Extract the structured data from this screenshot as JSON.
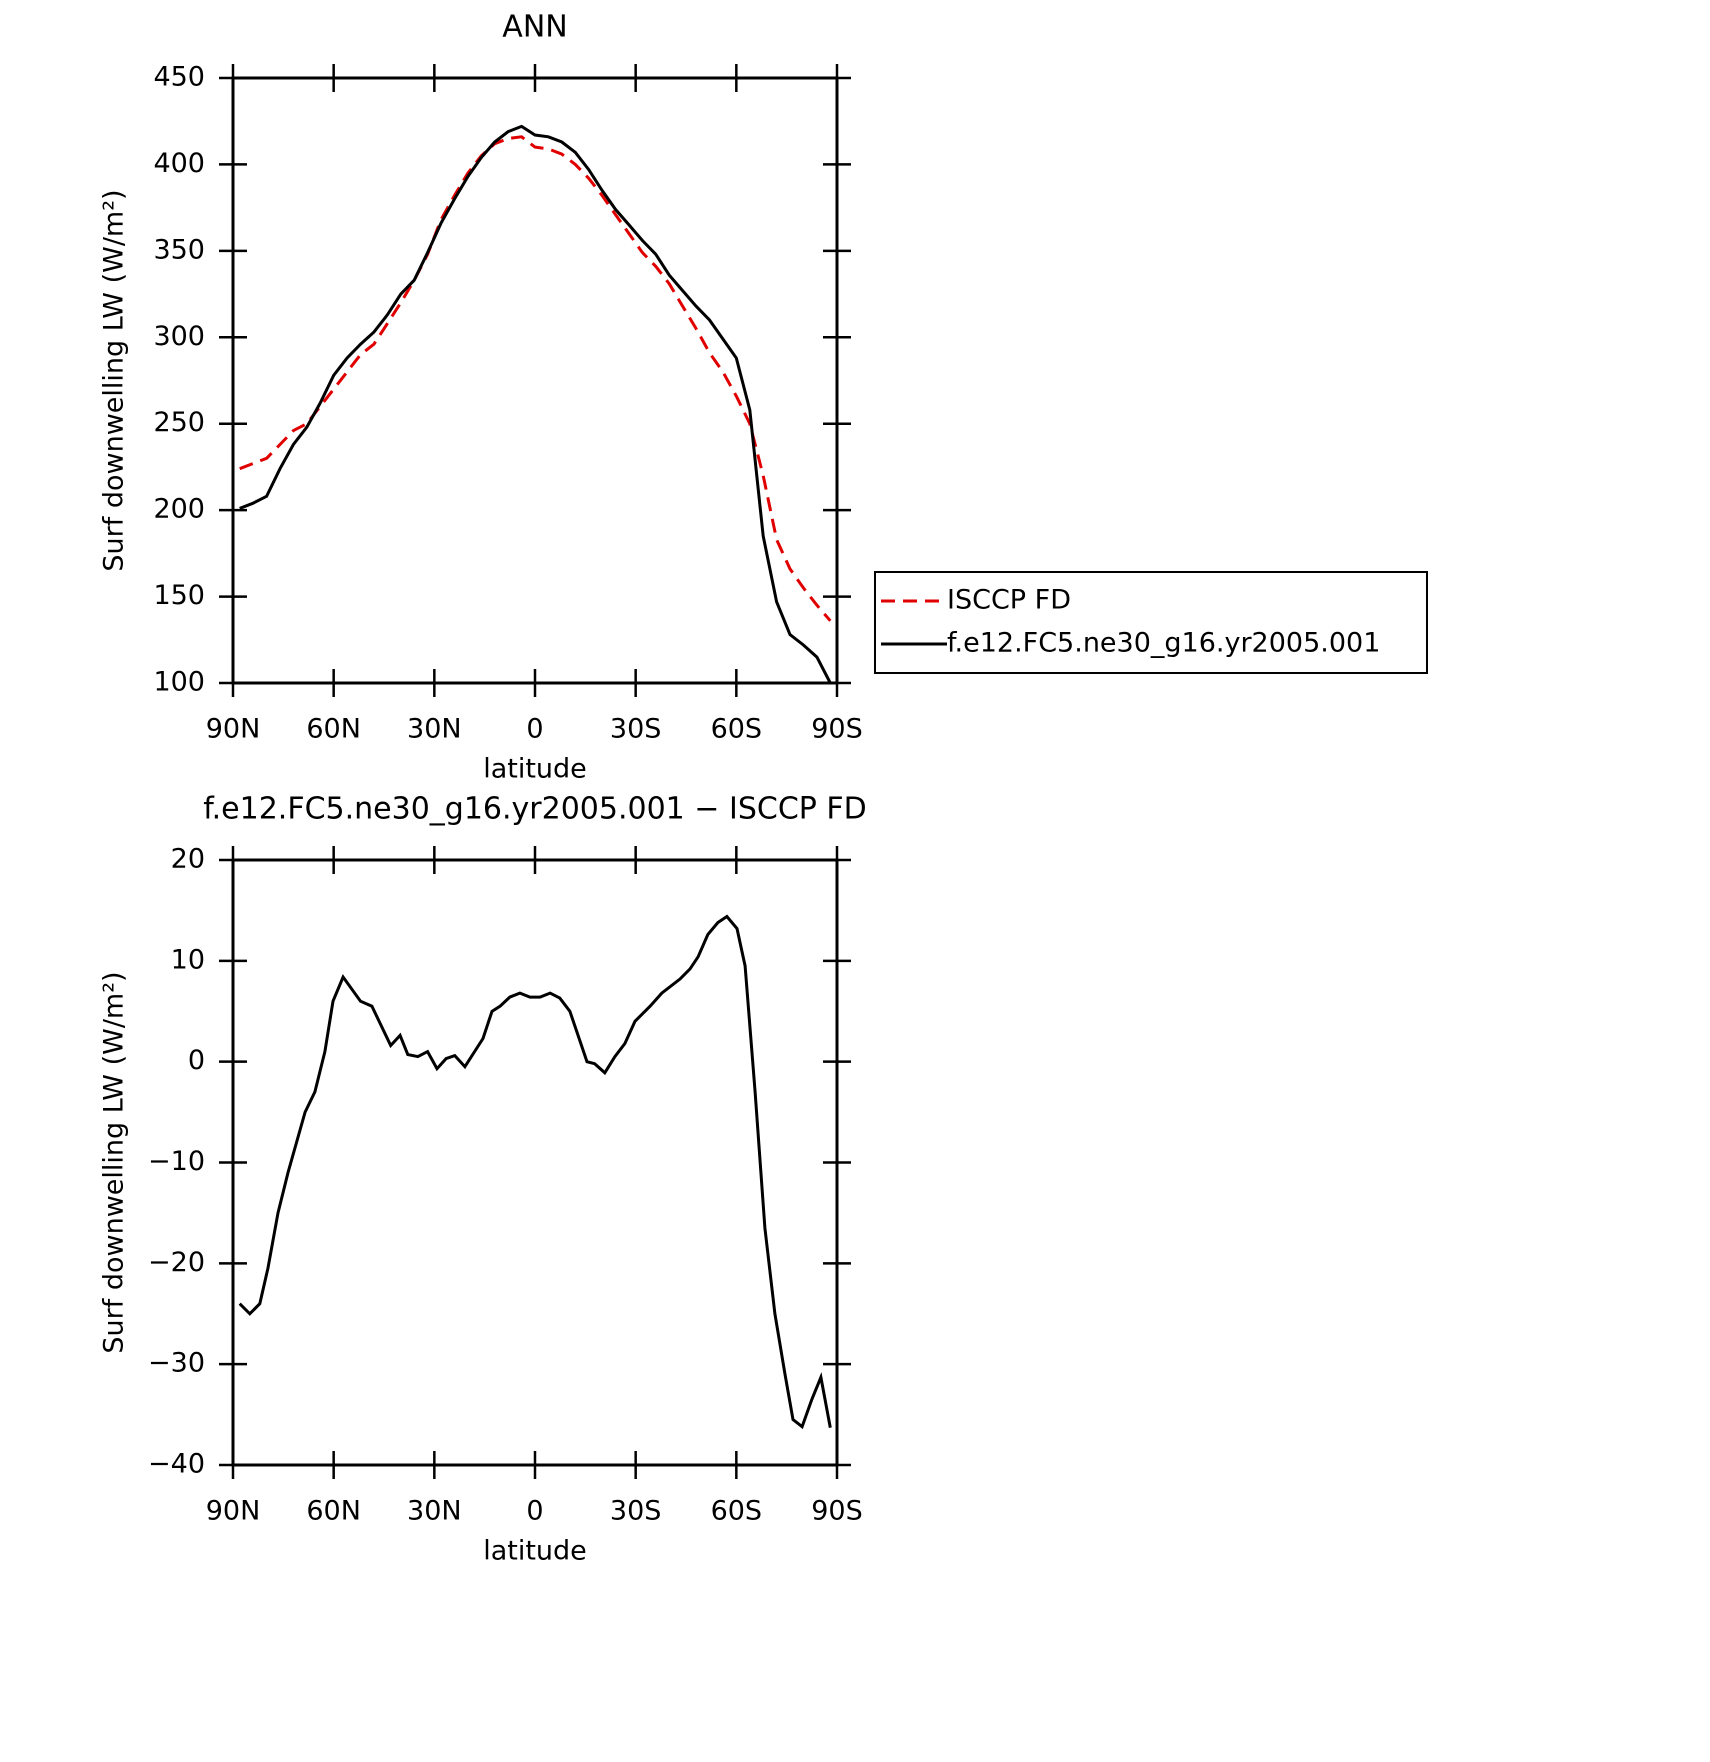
{
  "chart_data": [
    {
      "type": "line",
      "title": "ANN",
      "xlabel": "latitude",
      "ylabel": "Surf downwelling LW (W/m²)",
      "x": [
        88,
        84,
        80,
        76,
        72,
        68,
        64,
        60,
        56,
        52,
        48,
        44,
        40,
        36,
        32,
        28,
        24,
        20,
        16,
        12,
        8,
        4,
        0,
        -4,
        -8,
        -12,
        -16,
        -20,
        -24,
        -28,
        -32,
        -36,
        -40,
        -44,
        -48,
        -52,
        -56,
        -60,
        -64,
        -68,
        -72,
        -76,
        -80,
        -84,
        -88
      ],
      "series": [
        {
          "name": "ISCCP FD",
          "color": "#e00000",
          "linestyle": "dashed",
          "values": [
            224,
            227,
            230,
            238,
            246,
            250,
            260,
            270,
            280,
            290,
            296,
            308,
            320,
            333,
            348,
            368,
            382,
            395,
            405,
            412,
            415,
            416,
            410,
            409,
            406,
            400,
            392,
            382,
            371,
            360,
            349,
            341,
            331,
            318,
            305,
            291,
            280,
            266,
            250,
            220,
            183,
            166,
            155,
            145,
            136
          ]
        },
        {
          "name": "f.e12.FC5.ne30_g16.yr2005.001",
          "color": "#000000",
          "linestyle": "solid",
          "values": [
            201,
            204,
            208,
            224,
            238,
            248,
            262,
            278,
            288,
            296,
            303,
            313,
            325,
            333,
            349,
            366,
            380,
            393,
            404,
            413,
            419,
            422,
            417,
            416,
            413,
            407,
            397,
            385,
            374,
            365,
            356,
            348,
            336,
            327,
            318,
            310,
            299,
            288,
            258,
            185,
            147,
            128,
            122,
            115,
            100
          ]
        }
      ],
      "xlim": [
        90,
        -90
      ],
      "xticks": [
        {
          "value": 90,
          "label": "90N"
        },
        {
          "value": 60,
          "label": "60N"
        },
        {
          "value": 30,
          "label": "30N"
        },
        0,
        {
          "value": -30,
          "label": "30S"
        },
        {
          "value": -60,
          "label": "60S"
        },
        {
          "value": -90,
          "label": "90S"
        }
      ],
      "ylim": [
        100,
        450
      ],
      "yticks": [
        100,
        150,
        200,
        250,
        300,
        350,
        400,
        450
      ],
      "legend": "right"
    },
    {
      "type": "line",
      "title": "f.e12.FC5.ne30_g16.yr2005.001 − ISCCP FD",
      "xlabel": "latitude",
      "ylabel": "Surf downwelling LW (W/m²)",
      "x": [
        88,
        85,
        82,
        79.6,
        76.6,
        73.6,
        68.5,
        65.6,
        62.6,
        60.2,
        57.2,
        52,
        48.6,
        43,
        40.2,
        37.9,
        34.9,
        32,
        29.2,
        26.5,
        23.9,
        20.9,
        15.5,
        12.8,
        10.4,
        7.5,
        4.5,
        1.5,
        -1.5,
        -4.5,
        -7.4,
        -10.4,
        -15.5,
        -17.8,
        -20.8,
        -23.8,
        -26.8,
        -29.8,
        -34.3,
        -37.8,
        -43.2,
        -46.2,
        -48.6,
        -51.5,
        -54.5,
        -57.2,
        -60.2,
        -62.6,
        -65.6,
        -68.5,
        -71.5,
        -74.5,
        -76.9,
        -79.6,
        -82.5,
        -85.2,
        -88
      ],
      "values": [
        -24,
        -25,
        -24,
        -20.5,
        -15,
        -11,
        -5,
        -3,
        1,
        6,
        8.4,
        6,
        5.5,
        1.6,
        2.6,
        0.7,
        0.5,
        1,
        -0.7,
        0.3,
        0.6,
        -0.5,
        2.3,
        5,
        5.5,
        6.4,
        6.8,
        6.4,
        6.4,
        6.8,
        6.3,
        5,
        0,
        -0.2,
        -1.1,
        0.5,
        1.8,
        4,
        5.5,
        6.8,
        8.2,
        9.2,
        10.4,
        12.6,
        13.8,
        14.4,
        13.2,
        9.5,
        -3,
        -16.5,
        -25,
        -31,
        -35.5,
        -36.2,
        -33.5,
        -31.3,
        -36.3
      ],
      "color": "#000000",
      "xlim": [
        90,
        -90
      ],
      "xticks": [
        {
          "value": 90,
          "label": "90N"
        },
        {
          "value": 60,
          "label": "60N"
        },
        {
          "value": 30,
          "label": "30N"
        },
        0,
        {
          "value": -30,
          "label": "30S"
        },
        {
          "value": -60,
          "label": "60S"
        },
        {
          "value": -90,
          "label": "90S"
        }
      ],
      "ylim": [
        -40,
        20
      ],
      "yticks": [
        {
          "value": -40,
          "label": "−40"
        },
        {
          "value": -30,
          "label": "−30"
        },
        {
          "value": -20,
          "label": "−20"
        },
        {
          "value": -10,
          "label": "−10"
        },
        0,
        10,
        20
      ]
    }
  ]
}
